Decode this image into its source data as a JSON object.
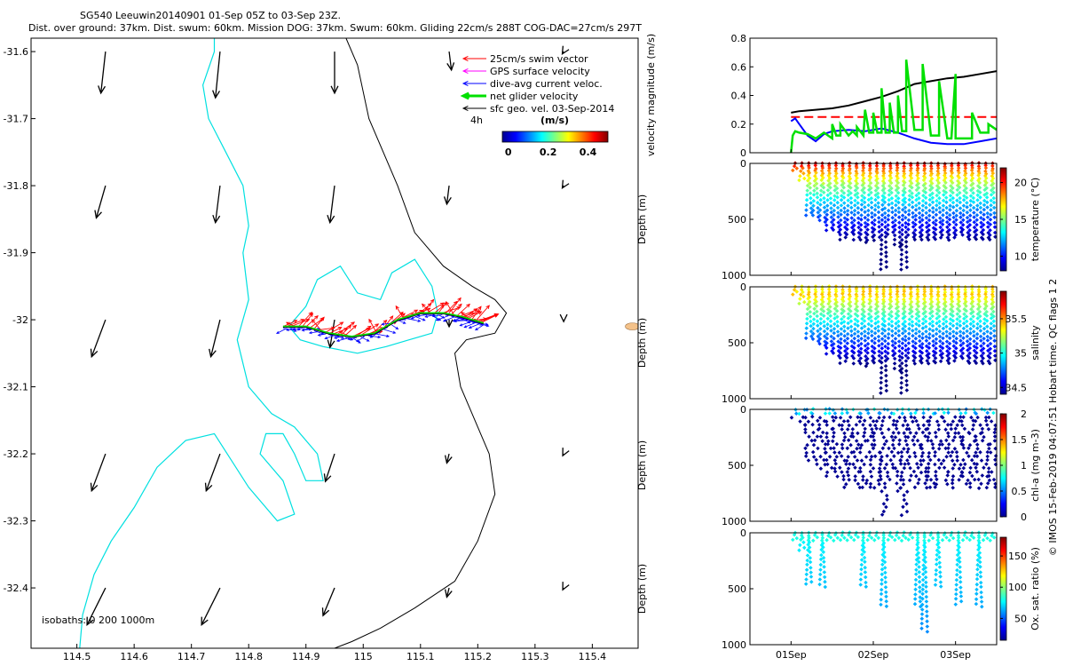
{
  "header": {
    "line1": "SG540 Leeuwin20140901 01-Sep 05Z to 03-Sep 23Z.",
    "line2": "Dist. over ground: 37km. Dist. swum: 60km. Mission DOG: 37km. Swum: 60km. Gliding 22cm/s 288T COG-DAC=27cm/s 297T"
  },
  "credit": "© IMOS 15-Feb-2019 04:07:51 Hobart time. QC flags 1  2",
  "colors": {
    "swim_vector": "#ff0000",
    "gps_velocity": "#ff00ff",
    "dive_avg_current": "#0000ff",
    "net_glider": "#00e000",
    "sfc_geo": "#000000",
    "isobath_200": "#00e0e0",
    "isobath_1000": "#000000",
    "island": "#f4c28a"
  },
  "chart_data": [
    {
      "type": "map",
      "xlim": [
        114.42,
        115.48
      ],
      "ylim": [
        -32.49,
        -31.58
      ],
      "xticks": [
        "114.5",
        "114.6",
        "114.7",
        "114.8",
        "114.9",
        "115",
        "115.1",
        "115.2",
        "115.3",
        "115.4"
      ],
      "xtick_values": [
        114.5,
        114.6,
        114.7,
        114.8,
        114.9,
        115.0,
        115.1,
        115.2,
        115.3,
        115.4
      ],
      "yticks": [
        "-31.6",
        "-31.7",
        "-31.8",
        "-31.9",
        "-32",
        "-32.1",
        "-32.2",
        "-32.3",
        "-32.4"
      ],
      "ytick_values": [
        -31.6,
        -31.7,
        -31.8,
        -31.9,
        -32.0,
        -32.1,
        -32.2,
        -32.3,
        -32.4
      ],
      "legend": {
        "entries": [
          "25cm/s swim vector",
          "GPS surface velocity",
          "dive-avg current veloc.",
          "net glider velocity",
          "sfc geo. vel. 03-Sep-2014"
        ],
        "interval_label": "4h"
      },
      "colorbar": {
        "title": "(m/s)",
        "ticks": [
          "0",
          "0.2",
          "0.4"
        ],
        "tick_values": [
          0,
          0.2,
          0.4
        ],
        "range": [
          -0.03,
          0.5
        ]
      },
      "isobath_label": "isobaths: 0   200   1000m",
      "track": {
        "lon": [
          114.86,
          114.9,
          114.94,
          114.98,
          115.02,
          115.06,
          115.1,
          115.14,
          115.17,
          115.19,
          115.21
        ],
        "lat": [
          -32.01,
          -32.01,
          -32.02,
          -32.025,
          -32.02,
          -32.0,
          -31.99,
          -31.99,
          -31.995,
          -32.0,
          -32.005
        ]
      },
      "sfc_geo_vectors": {
        "lon": [
          114.55,
          114.75,
          114.95,
          115.15,
          115.35
        ],
        "lat": [
          -31.6,
          -31.8,
          -32.0,
          -32.2,
          -32.4
        ],
        "u": [
          [
            -0.01,
            -0.01,
            0.0,
            0.005,
            -0.003
          ],
          [
            -0.02,
            -0.01,
            -0.01,
            -0.005,
            -0.003
          ],
          [
            -0.03,
            -0.02,
            -0.01,
            0.0,
            0.0
          ],
          [
            -0.03,
            -0.03,
            -0.02,
            -0.005,
            -0.002
          ],
          [
            -0.04,
            -0.04,
            -0.025,
            -0.005,
            -0.002
          ]
        ],
        "v": [
          [
            -0.09,
            -0.1,
            -0.09,
            -0.04,
            -0.005
          ],
          [
            -0.07,
            -0.08,
            -0.08,
            -0.04,
            -0.005
          ],
          [
            -0.08,
            -0.08,
            -0.06,
            -0.015,
            -0.004
          ],
          [
            -0.08,
            -0.08,
            -0.06,
            -0.02,
            -0.004
          ],
          [
            -0.08,
            -0.08,
            -0.06,
            -0.02,
            -0.004
          ]
        ]
      }
    },
    {
      "type": "line",
      "ylabel": "velocity magnitude (m/s)",
      "ylim": [
        0,
        0.8
      ],
      "yticks": [
        "0",
        "0.2",
        "0.4",
        "0.6",
        "0.8"
      ],
      "ytick_values": [
        0,
        0.2,
        0.4,
        0.6,
        0.8
      ],
      "xlim": [
        0.0,
        3.0
      ],
      "xticks": [
        "01Sep",
        "02Sep",
        "03Sep"
      ],
      "xtick_values": [
        0.5,
        1.5,
        2.5
      ],
      "series": [
        {
          "color": "#000000",
          "x": [
            0.5,
            0.6,
            0.8,
            1.0,
            1.2,
            1.4,
            1.6,
            1.8,
            2.0,
            2.2,
            2.4,
            2.6,
            2.8,
            3.0
          ],
          "y": [
            0.28,
            0.29,
            0.3,
            0.31,
            0.33,
            0.36,
            0.39,
            0.43,
            0.48,
            0.5,
            0.52,
            0.53,
            0.55,
            0.57
          ]
        },
        {
          "color": "#ff0000",
          "dashed": true,
          "x": [
            0.5,
            3.0
          ],
          "y": [
            0.25,
            0.25
          ]
        },
        {
          "color": "#0000ff",
          "x": [
            0.5,
            0.55,
            0.6,
            0.7,
            0.8,
            0.9,
            1.0,
            1.2,
            1.4,
            1.6,
            1.8,
            2.0,
            2.2,
            2.4,
            2.6,
            2.8,
            3.0
          ],
          "y": [
            0.22,
            0.24,
            0.2,
            0.12,
            0.08,
            0.13,
            0.15,
            0.16,
            0.15,
            0.17,
            0.14,
            0.1,
            0.07,
            0.06,
            0.06,
            0.08,
            0.1
          ]
        },
        {
          "color": "#00e000",
          "x": [
            0.5,
            0.52,
            0.55,
            0.6,
            0.7,
            0.8,
            0.9,
            1.0,
            1.0,
            1.05,
            1.1,
            1.1,
            1.2,
            1.25,
            1.3,
            1.3,
            1.38,
            1.4,
            1.45,
            1.5,
            1.5,
            1.55,
            1.6,
            1.6,
            1.65,
            1.7,
            1.7,
            1.75,
            1.8,
            1.8,
            1.85,
            1.9,
            1.9,
            2.0,
            2.05,
            2.1,
            2.1,
            2.2,
            2.3,
            2.3,
            2.4,
            2.45,
            2.5,
            2.5,
            2.6,
            2.7,
            2.7,
            2.8,
            2.9,
            2.9,
            3.0
          ],
          "y": [
            0.0,
            0.12,
            0.15,
            0.14,
            0.13,
            0.1,
            0.14,
            0.1,
            0.2,
            0.12,
            0.12,
            0.2,
            0.12,
            0.15,
            0.12,
            0.18,
            0.12,
            0.3,
            0.14,
            0.14,
            0.28,
            0.14,
            0.14,
            0.45,
            0.14,
            0.14,
            0.35,
            0.14,
            0.14,
            0.4,
            0.15,
            0.15,
            0.65,
            0.16,
            0.16,
            0.16,
            0.62,
            0.12,
            0.12,
            0.5,
            0.1,
            0.1,
            0.55,
            0.1,
            0.1,
            0.1,
            0.28,
            0.14,
            0.14,
            0.2,
            0.16
          ]
        }
      ]
    },
    {
      "type": "scatter",
      "ylabel": "Depth (m)",
      "clabel": "temperature (°C)",
      "ylim": [
        1000,
        0
      ],
      "yticks": [
        "0",
        "500",
        "1000"
      ],
      "ytick_values": [
        0,
        500,
        1000
      ],
      "clim": [
        8,
        22
      ],
      "cticks": [
        "10",
        "15",
        "20"
      ],
      "ctick_values": [
        10,
        15,
        20
      ],
      "profiles_start": 0.55,
      "profiles_end": 2.95,
      "profile_count": 30,
      "max_depth_per_profile": [
        80,
        160,
        480,
        500,
        540,
        600,
        620,
        700,
        650,
        700,
        720,
        700,
        700,
        950,
        650,
        750,
        950,
        660,
        700,
        700,
        700,
        700,
        680,
        700,
        650,
        680,
        700,
        700,
        700,
        700
      ]
    },
    {
      "type": "scatter",
      "ylabel": "Depth (m)",
      "clabel": "salinity",
      "ylim": [
        1000,
        0
      ],
      "yticks": [
        "0",
        "500",
        "1000"
      ],
      "ytick_values": [
        0,
        500,
        1000
      ],
      "clim": [
        34.4,
        35.9
      ],
      "cticks": [
        "34.5",
        "35",
        "35.5"
      ],
      "ctick_values": [
        34.5,
        35.0,
        35.5
      ],
      "profiles_start": 0.55,
      "profiles_end": 2.95,
      "profile_count": 30,
      "max_depth_per_profile": [
        80,
        160,
        480,
        500,
        540,
        600,
        620,
        700,
        650,
        700,
        720,
        700,
        700,
        950,
        650,
        750,
        950,
        660,
        700,
        700,
        700,
        700,
        680,
        700,
        650,
        680,
        700,
        700,
        700,
        700
      ]
    },
    {
      "type": "scatter",
      "ylabel": "Depth (m)",
      "clabel": "chl-a (mg m-3)",
      "ylim": [
        1000,
        0
      ],
      "yticks": [
        "0",
        "500",
        "1000"
      ],
      "ytick_values": [
        0,
        500,
        1000
      ],
      "clim": [
        0,
        2
      ],
      "cticks": [
        "0",
        "0.5",
        "1",
        "1.5",
        "2"
      ],
      "ctick_values": [
        0,
        0.5,
        1.0,
        1.5,
        2.0
      ],
      "profiles_start": 0.55,
      "profiles_end": 2.95,
      "profile_count": 30,
      "max_depth_per_profile": [
        80,
        160,
        480,
        500,
        540,
        600,
        620,
        700,
        650,
        700,
        720,
        700,
        700,
        950,
        650,
        750,
        950,
        660,
        700,
        700,
        700,
        700,
        680,
        700,
        650,
        680,
        700,
        700,
        700,
        700
      ]
    },
    {
      "type": "scatter",
      "ylabel": "Depth (m)",
      "clabel": "Ox. sat. ratio (%)",
      "ylim": [
        1000,
        0
      ],
      "yticks": [
        "0",
        "500",
        "1000"
      ],
      "ytick_values": [
        0,
        500,
        1000
      ],
      "clim": [
        15,
        180
      ],
      "cticks": [
        "50",
        "100",
        "150"
      ],
      "ctick_values": [
        50,
        100,
        150
      ],
      "profiles_start": 0.55,
      "profiles_end": 2.95,
      "profile_count": 30,
      "max_depth_per_profile": [
        80,
        160,
        480,
        80,
        500,
        80,
        80,
        80,
        80,
        80,
        500,
        80,
        80,
        660,
        80,
        80,
        80,
        80,
        680,
        880,
        80,
        500,
        80,
        80,
        650,
        80,
        80,
        660,
        80,
        80
      ]
    }
  ]
}
